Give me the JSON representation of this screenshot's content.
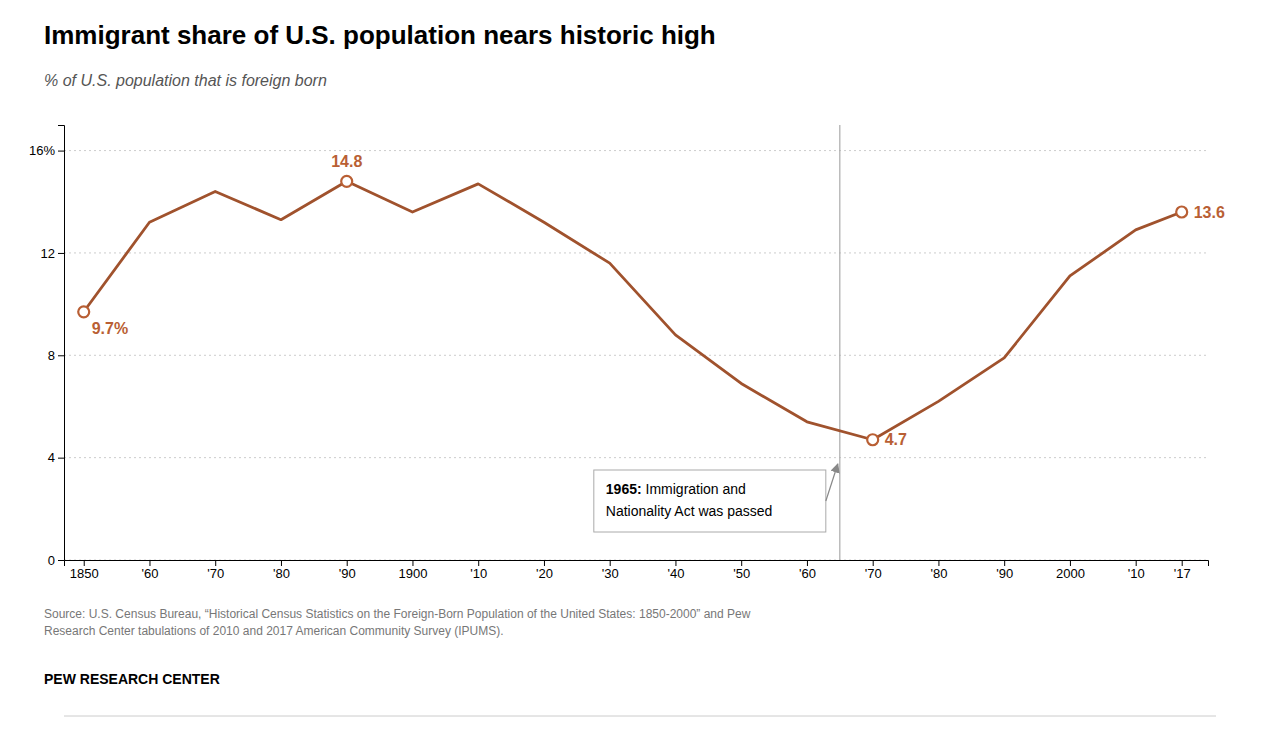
{
  "chart_data": {
    "type": "line",
    "title": "Immigrant share of U.S. population nears historic high",
    "subtitle": "% of U.S. population that is foreign born",
    "x": [
      1850,
      1860,
      1870,
      1880,
      1890,
      1900,
      1910,
      1920,
      1930,
      1940,
      1950,
      1960,
      1970,
      1980,
      1990,
      2000,
      2010,
      2017
    ],
    "values": [
      9.7,
      13.2,
      14.4,
      13.3,
      14.8,
      13.6,
      14.7,
      13.2,
      11.6,
      8.8,
      6.9,
      5.4,
      4.7,
      6.2,
      7.9,
      11.1,
      12.9,
      13.6
    ],
    "value_labels": [
      "9.7%",
      null,
      null,
      null,
      "14.8",
      null,
      null,
      null,
      null,
      null,
      null,
      null,
      "4.7",
      null,
      null,
      null,
      null,
      "13.6"
    ],
    "color": "#a0522d",
    "xlim": [
      1847,
      2021
    ],
    "xticks": [
      1850,
      {
        "value": 1860,
        "label": "'60"
      },
      {
        "value": 1870,
        "label": "'70"
      },
      {
        "value": 1880,
        "label": "'80"
      },
      {
        "value": 1890,
        "label": "'90"
      },
      1900,
      {
        "value": 1910,
        "label": "'10"
      },
      {
        "value": 1920,
        "label": "'20"
      },
      {
        "value": 1930,
        "label": "'30"
      },
      {
        "value": 1940,
        "label": "'40"
      },
      {
        "value": 1950,
        "label": "'50"
      },
      {
        "value": 1960,
        "label": "'60"
      },
      {
        "value": 1970,
        "label": "'70"
      },
      {
        "value": 1980,
        "label": "'80"
      },
      {
        "value": 1990,
        "label": "'90"
      },
      2000,
      {
        "value": 2010,
        "label": "'10"
      },
      {
        "value": 2017,
        "label": "'17"
      }
    ],
    "ylim": [
      0,
      17
    ],
    "yticks": [
      0,
      4,
      8,
      12,
      {
        "value": 16,
        "label": "16%"
      }
    ],
    "grid": true,
    "annotations": [
      {
        "x": 1965,
        "text": [
          "1965:",
          " Immigration and",
          "Nationality Act was passed"
        ]
      }
    ],
    "source": "Source: U.S. Census Bureau, “Historical Census Statistics on the Foreign-Born Population of the United States: 1850-2000” and Pew\nResearch Center tabulations of 2010 and 2017 American Community Survey (IPUMS).",
    "credit": "PEW RESEARCH CENTER"
  }
}
